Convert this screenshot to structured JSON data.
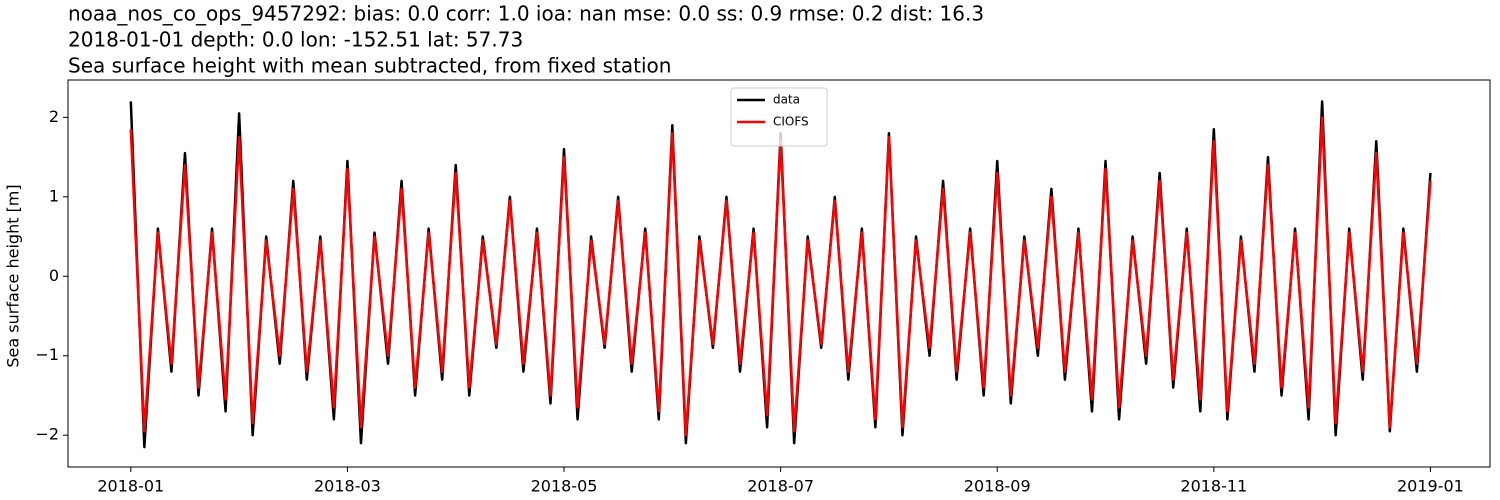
{
  "chart_data": {
    "type": "line",
    "title": [
      "noaa_nos_co_ops_9457292: bias: 0.0  corr: 1.0  ioa: nan  mse: 0.0  ss: 0.9  rmse: 0.2  dist: 16.3",
      "2018-01-01 depth: 0.0 lon: -152.51 lat: 57.73",
      "Sea surface height with mean subtracted, from fixed station"
    ],
    "ylabel": "Sea surface height [m]",
    "x": [
      0,
      0.125,
      0.25,
      0.375,
      0.5,
      0.625,
      0.75,
      0.875,
      1,
      1.125,
      1.25,
      1.375,
      1.5,
      1.625,
      1.75,
      1.875,
      2,
      2.125,
      2.25,
      2.375,
      2.5,
      2.625,
      2.75,
      2.875,
      3,
      3.125,
      3.25,
      3.375,
      3.5,
      3.625,
      3.75,
      3.875,
      4,
      4.125,
      4.25,
      4.375,
      4.5,
      4.625,
      4.75,
      4.875,
      5,
      5.125,
      5.25,
      5.375,
      5.5,
      5.625,
      5.75,
      5.875,
      6,
      6.125,
      6.25,
      6.375,
      6.5,
      6.625,
      6.75,
      6.875,
      7,
      7.125,
      7.25,
      7.375,
      7.5,
      7.625,
      7.75,
      7.875,
      8,
      8.125,
      8.25,
      8.375,
      8.5,
      8.625,
      8.75,
      8.875,
      9,
      9.125,
      9.25,
      9.375,
      9.5,
      9.625,
      9.75,
      9.875,
      10,
      10.125,
      10.25,
      10.375,
      10.5,
      10.625,
      10.75,
      10.875,
      11,
      11.125,
      11.25,
      11.375,
      11.5,
      11.625,
      11.75,
      11.875,
      12
    ],
    "series": [
      {
        "name": "data",
        "color": "#000000",
        "values": [
          2.2,
          -2.15,
          0.6,
          -1.2,
          1.55,
          -1.5,
          0.6,
          -1.7,
          2.05,
          -2.0,
          0.5,
          -1.1,
          1.2,
          -1.3,
          0.5,
          -1.8,
          1.45,
          -2.1,
          0.55,
          -1.1,
          1.2,
          -1.5,
          0.6,
          -1.3,
          1.4,
          -1.5,
          0.5,
          -0.9,
          1.0,
          -1.2,
          0.6,
          -1.6,
          1.6,
          -1.8,
          0.5,
          -0.9,
          1.0,
          -1.2,
          0.6,
          -1.8,
          1.9,
          -2.1,
          0.5,
          -0.9,
          1.0,
          -1.2,
          0.6,
          -1.9,
          1.8,
          -2.1,
          0.5,
          -0.9,
          1.0,
          -1.3,
          0.6,
          -1.9,
          1.8,
          -2.0,
          0.5,
          -1.0,
          1.2,
          -1.3,
          0.6,
          -1.5,
          1.45,
          -1.6,
          0.5,
          -1.0,
          1.1,
          -1.3,
          0.6,
          -1.7,
          1.45,
          -1.8,
          0.5,
          -1.1,
          1.3,
          -1.4,
          0.6,
          -1.7,
          1.85,
          -1.8,
          0.5,
          -1.2,
          1.5,
          -1.5,
          0.6,
          -1.8,
          2.2,
          -2.0,
          0.6,
          -1.3,
          1.7,
          -1.95,
          0.6,
          -1.2,
          1.3
        ]
      },
      {
        "name": "CIOFS",
        "color": "#ff0000",
        "values": [
          1.85,
          -1.95,
          0.55,
          -1.1,
          1.4,
          -1.4,
          0.55,
          -1.55,
          1.75,
          -1.85,
          0.45,
          -1.0,
          1.1,
          -1.2,
          0.45,
          -1.65,
          1.35,
          -1.9,
          0.5,
          -1.0,
          1.1,
          -1.4,
          0.55,
          -1.2,
          1.3,
          -1.4,
          0.45,
          -0.85,
          0.95,
          -1.1,
          0.55,
          -1.5,
          1.5,
          -1.65,
          0.45,
          -0.85,
          0.95,
          -1.1,
          0.55,
          -1.7,
          1.8,
          -2.0,
          0.45,
          -0.85,
          0.95,
          -1.1,
          0.55,
          -1.75,
          1.7,
          -1.95,
          0.45,
          -0.85,
          0.95,
          -1.2,
          0.55,
          -1.8,
          1.75,
          -1.9,
          0.45,
          -0.9,
          1.1,
          -1.2,
          0.55,
          -1.4,
          1.3,
          -1.5,
          0.45,
          -0.9,
          1.0,
          -1.2,
          0.55,
          -1.55,
          1.35,
          -1.65,
          0.45,
          -1.0,
          1.2,
          -1.3,
          0.55,
          -1.55,
          1.7,
          -1.7,
          0.45,
          -1.1,
          1.4,
          -1.4,
          0.55,
          -1.65,
          2.0,
          -1.85,
          0.55,
          -1.2,
          1.55,
          -1.9,
          0.55,
          -1.1,
          1.2
        ]
      }
    ],
    "xlim": [
      -0.58,
      12.55
    ],
    "xticks": [
      {
        "value": 0,
        "label": "2018-01"
      },
      {
        "value": 2,
        "label": "2018-03"
      },
      {
        "value": 4,
        "label": "2018-05"
      },
      {
        "value": 6,
        "label": "2018-07"
      },
      {
        "value": 8,
        "label": "2018-09"
      },
      {
        "value": 10,
        "label": "2018-11"
      },
      {
        "value": 12,
        "label": "2019-01"
      }
    ],
    "ylim": [
      -2.4,
      2.47
    ],
    "yticks": [
      {
        "value": -2,
        "label": "−2"
      },
      {
        "value": -1,
        "label": "−1"
      },
      0,
      1,
      2
    ],
    "grid": false,
    "legend": "upper center"
  }
}
